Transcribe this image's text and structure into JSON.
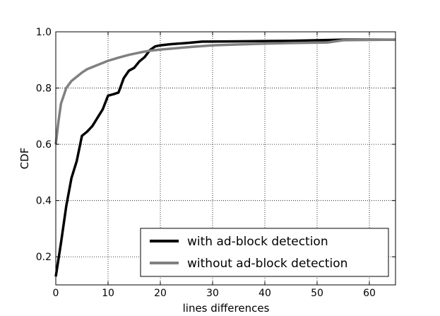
{
  "chart_data": {
    "type": "line",
    "xlabel": "lines differences",
    "ylabel": "CDF",
    "xlim": [
      0,
      65
    ],
    "ylim": [
      0.1,
      1.0
    ],
    "xticks": [
      0,
      10,
      20,
      30,
      40,
      50,
      60
    ],
    "yticks": [
      0.2,
      0.4,
      0.6,
      0.8,
      1.0
    ],
    "grid": true,
    "legend_position": "lower-right",
    "series": [
      {
        "name": "with ad-block detection",
        "color": "#000000",
        "points": [
          [
            0,
            0.13
          ],
          [
            1,
            0.25
          ],
          [
            2,
            0.38
          ],
          [
            3,
            0.48
          ],
          [
            4,
            0.54
          ],
          [
            5,
            0.63
          ],
          [
            6,
            0.645
          ],
          [
            7,
            0.665
          ],
          [
            8,
            0.695
          ],
          [
            9,
            0.725
          ],
          [
            10,
            0.773
          ],
          [
            11,
            0.778
          ],
          [
            12,
            0.784
          ],
          [
            13,
            0.835
          ],
          [
            14,
            0.862
          ],
          [
            15,
            0.872
          ],
          [
            16,
            0.895
          ],
          [
            17,
            0.91
          ],
          [
            18,
            0.935
          ],
          [
            19,
            0.948
          ],
          [
            20,
            0.952
          ],
          [
            22,
            0.956
          ],
          [
            25,
            0.96
          ],
          [
            28,
            0.965
          ],
          [
            35,
            0.966
          ],
          [
            45,
            0.968
          ],
          [
            55,
            0.972
          ],
          [
            65,
            0.972
          ]
        ]
      },
      {
        "name": "without ad-block detection",
        "color": "#808080",
        "points": [
          [
            0,
            0.6
          ],
          [
            0.5,
            0.68
          ],
          [
            1,
            0.745
          ],
          [
            2,
            0.8
          ],
          [
            3,
            0.825
          ],
          [
            4,
            0.84
          ],
          [
            5,
            0.855
          ],
          [
            6,
            0.867
          ],
          [
            8,
            0.882
          ],
          [
            10,
            0.897
          ],
          [
            12,
            0.908
          ],
          [
            14,
            0.918
          ],
          [
            16,
            0.926
          ],
          [
            18,
            0.933
          ],
          [
            20,
            0.937
          ],
          [
            22,
            0.94
          ],
          [
            25,
            0.945
          ],
          [
            30,
            0.952
          ],
          [
            35,
            0.955
          ],
          [
            40,
            0.958
          ],
          [
            45,
            0.96
          ],
          [
            52,
            0.962
          ],
          [
            55,
            0.97
          ],
          [
            65,
            0.972
          ]
        ]
      }
    ]
  }
}
